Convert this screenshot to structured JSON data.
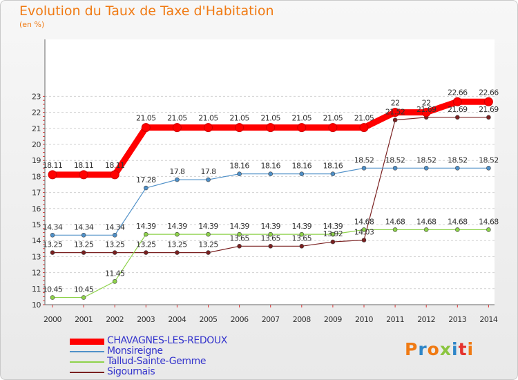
{
  "header": {
    "title": "Evolution du Taux de Taxe d'Habitation",
    "subtitle": "(en %)"
  },
  "logo": {
    "text": "Proxiti",
    "colors": [
      "#f07a13",
      "#2e86c8",
      "#f07a13",
      "#8bc53f",
      "#2e86c8",
      "#e5322d",
      "#f07a13"
    ]
  },
  "chart_data": {
    "type": "line",
    "x": [
      "2000",
      "2001",
      "2002",
      "2003",
      "2004",
      "2005",
      "2006",
      "2007",
      "2008",
      "2009",
      "2010",
      "2011",
      "2012",
      "2013",
      "2014"
    ],
    "ylim": [
      10,
      23
    ],
    "yticks": [
      10,
      11,
      12,
      13,
      14,
      15,
      16,
      17,
      18,
      19,
      20,
      21,
      22,
      23
    ],
    "grid": "horizontal-dashed",
    "legend_position": "bottom-left",
    "series": [
      {
        "name": "CHAVAGNES-LES-REDOUX",
        "color": "#ff0000",
        "values": [
          18.11,
          18.11,
          18.11,
          21.05,
          21.05,
          21.05,
          21.05,
          21.05,
          21.05,
          21.05,
          21.05,
          22,
          22,
          22.66,
          22.66
        ],
        "labels": [
          "18.11",
          "18.11",
          "18.11",
          "21.05",
          "21.05",
          "21.05",
          "21.05",
          "21.05",
          "21.05",
          "21.05",
          "21.05",
          "22",
          "22",
          "22.66",
          "22.66"
        ]
      },
      {
        "name": "Monsireigne",
        "color": "#4f90c8",
        "values": [
          14.34,
          14.34,
          14.34,
          17.28,
          17.8,
          17.8,
          18.16,
          18.16,
          18.16,
          18.16,
          18.52,
          18.52,
          18.52,
          18.52,
          18.52
        ],
        "labels": [
          "14.34",
          "14.34",
          "14.34",
          "17.28",
          "17.8",
          "17.8",
          "18.16",
          "18.16",
          "18.16",
          "18.16",
          "18.52",
          "18.52",
          "18.52",
          "18.52",
          "18.52"
        ]
      },
      {
        "name": "Tallud-Sainte-Gemme",
        "color": "#8ed24a",
        "values": [
          10.45,
          10.45,
          11.45,
          14.39,
          14.39,
          14.39,
          14.39,
          14.39,
          14.39,
          14.39,
          14.68,
          14.68,
          14.68,
          14.68,
          14.68
        ],
        "labels": [
          "10.45",
          "10.45",
          "11.45",
          "14.39",
          "14.39",
          "14.39",
          "14.39",
          "14.39",
          "14.39",
          "14.39",
          "14.68",
          "14.68",
          "14.68",
          "14.68",
          "14.68"
        ]
      },
      {
        "name": "Sigournais",
        "color": "#7a2020",
        "values": [
          13.25,
          13.25,
          13.25,
          13.25,
          13.25,
          13.25,
          13.65,
          13.65,
          13.65,
          13.92,
          14.03,
          21.52,
          21.69,
          21.69,
          21.69
        ],
        "labels": [
          "13.25",
          "13.25",
          "13.25",
          "13.25",
          "13.25",
          "13.25",
          "13.65",
          "13.65",
          "13.65",
          "13.92",
          "14.03",
          "21.52",
          "21.69",
          "21.69",
          "21.69"
        ]
      }
    ]
  }
}
